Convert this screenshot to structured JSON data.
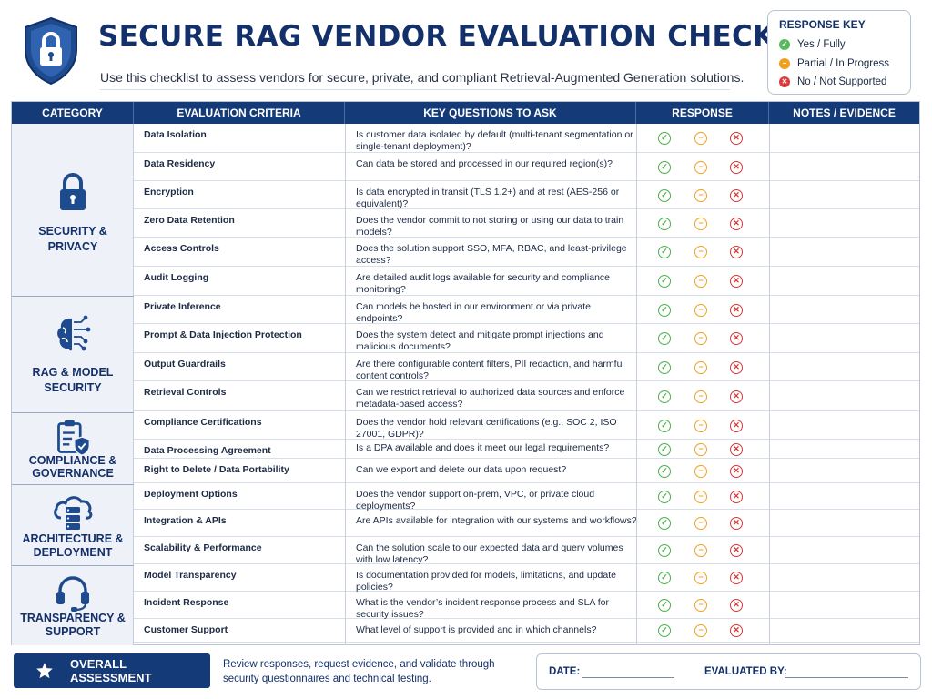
{
  "header": {
    "title": "SECURE RAG VENDOR EVALUATION CHECKLIST",
    "subtitle": "Use this checklist to assess vendors for secure, private, and compliant Retrieval-Augmented Generation solutions.",
    "logo_icon": "shield-lock-icon"
  },
  "response_key": {
    "title": "RESPONSE KEY",
    "items": [
      {
        "label": "Yes / Fully",
        "icon": "check-icon",
        "color": "#5cb85c"
      },
      {
        "label": "Partial / In Progress",
        "icon": "minus-icon",
        "color": "#f0a020"
      },
      {
        "label": "No / Not Supported",
        "icon": "x-icon",
        "color": "#dc3c3c"
      }
    ]
  },
  "table": {
    "columns": [
      "CATEGORY",
      "EVALUATION CRITERIA",
      "KEY QUESTIONS TO ASK",
      "RESPONSE",
      "NOTES / EVIDENCE"
    ],
    "categories": [
      {
        "label_lines": [
          "SECURITY &",
          "PRIVACY"
        ],
        "icon": "padlock-icon",
        "rows": [
          {
            "criteria": "Data Isolation",
            "question": "Is customer data isolated by default (multi-tenant segmentation or single-tenant deployment)?"
          },
          {
            "criteria": "Data Residency",
            "question": "Can data be stored and processed in our required region(s)?"
          },
          {
            "criteria": "Encryption",
            "question": "Is data encrypted in transit (TLS 1.2+) and at rest (AES-256 or equivalent)?"
          },
          {
            "criteria": "Zero Data Retention",
            "question": "Does the vendor commit to not storing or using our data to train models?"
          },
          {
            "criteria": "Access Controls",
            "question": "Does the solution support SSO, MFA, RBAC, and least-privilege access?"
          },
          {
            "criteria": "Audit Logging",
            "question": "Are detailed audit logs available for security and compliance monitoring?"
          }
        ]
      },
      {
        "label_lines": [
          "RAG & MODEL",
          "SECURITY"
        ],
        "icon": "brain-circuit-icon",
        "rows": [
          {
            "criteria": "Private Inference",
            "question": "Can models be hosted in our environment or via private endpoints?"
          },
          {
            "criteria": "Prompt & Data Injection Protection",
            "question": "Does the system detect and mitigate prompt injections and malicious documents?"
          },
          {
            "criteria": "Output Guardrails",
            "question": "Are there configurable content filters, PII redaction, and harmful content controls?"
          },
          {
            "criteria": "Retrieval Controls",
            "question": "Can we restrict retrieval to authorized data sources and enforce metadata-based access?"
          }
        ]
      },
      {
        "label_lines": [
          "COMPLIANCE &",
          "GOVERNANCE"
        ],
        "icon": "clipboard-shield-icon",
        "rows": [
          {
            "criteria": "Compliance Certifications",
            "question": "Does the vendor hold relevant certifications (e.g., SOC 2, ISO 27001, GDPR)?"
          },
          {
            "criteria": "Data Processing Agreement",
            "question": "Is a DPA available and does it meet our legal requirements?"
          },
          {
            "criteria": "Right to Delete / Data Portability",
            "question": "Can we export and delete our data upon request?"
          }
        ]
      },
      {
        "label_lines": [
          "ARCHITECTURE &",
          "DEPLOYMENT"
        ],
        "icon": "cloud-server-icon",
        "rows": [
          {
            "criteria": "Deployment Options",
            "question": "Does the vendor support on-prem, VPC, or private cloud deployments?"
          },
          {
            "criteria": "Integration & APIs",
            "question": "Are APIs available for integration with our systems and workflows?"
          },
          {
            "criteria": "Scalability & Performance",
            "question": "Can the solution scale to our expected data and query volumes with low latency?"
          }
        ]
      },
      {
        "label_lines": [
          "TRANSPARENCY &",
          "SUPPORT"
        ],
        "icon": "headset-icon",
        "rows": [
          {
            "criteria": "Model Transparency",
            "question": "Is documentation provided for models, limitations, and update policies?"
          },
          {
            "criteria": "Incident Response",
            "question": "What is the vendor’s incident response process and SLA for security issues?"
          },
          {
            "criteria": "Customer Support",
            "question": "What level of support is provided and in which channels?"
          }
        ]
      }
    ]
  },
  "footer": {
    "assessment_label": "OVERALL ASSESSMENT",
    "assessment_icon": "star-icon",
    "assessment_text": "Review responses, request evidence, and validate through security questionnaires and technical testing.",
    "date_label": "DATE:",
    "evaluated_by_label": "EVALUATED BY:"
  },
  "colors": {
    "navy": "#153a78",
    "title": "#13306a",
    "yes": "#5cb85c",
    "partial": "#f0a020",
    "no": "#dc3c3c"
  }
}
